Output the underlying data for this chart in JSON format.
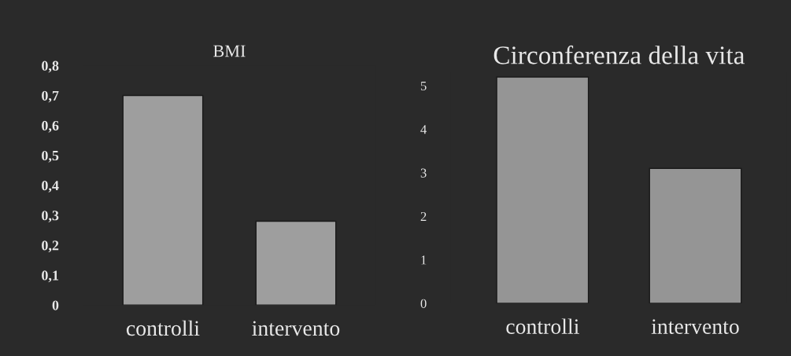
{
  "chart_data": [
    {
      "type": "bar",
      "title": "BMI",
      "categories": [
        "controlli",
        "intervento"
      ],
      "values": [
        0.7,
        0.28
      ],
      "color": "#9e9e9e",
      "ylim": [
        0,
        0.8
      ],
      "yticks": [
        {
          "value": 0,
          "label": "0"
        },
        {
          "value": 0.1,
          "label": "0,1"
        },
        {
          "value": 0.2,
          "label": "0,2"
        },
        {
          "value": 0.3,
          "label": "0,3"
        },
        {
          "value": 0.4,
          "label": "0,4"
        },
        {
          "value": 0.5,
          "label": "0,5"
        },
        {
          "value": 0.6,
          "label": "0,6"
        },
        {
          "value": 0.7,
          "label": "0,7"
        },
        {
          "value": 0.8,
          "label": "0,8"
        }
      ],
      "grid": false
    },
    {
      "type": "bar",
      "title": "Circonferenza della vita",
      "categories": [
        "controlli",
        "intervento"
      ],
      "values": [
        5.2,
        3.1
      ],
      "color": "#959595",
      "ylim": [
        0,
        5.3
      ],
      "yticks": [
        0,
        1,
        2,
        3,
        4,
        5
      ],
      "grid": false
    }
  ]
}
